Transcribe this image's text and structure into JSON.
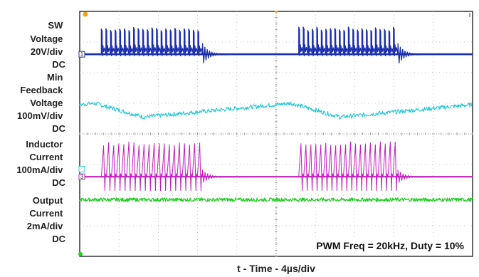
{
  "chart_data": {
    "type": "line",
    "title": "",
    "xlabel": "t - Time - 4µs/div",
    "ylabel": "",
    "annotation": "PWM Freq = 20kHz, Duty = 10%",
    "divisions": {
      "x": 10,
      "y": 8
    },
    "grid": true,
    "x_range_us": [
      0,
      40
    ],
    "pwm": {
      "freq_khz": 20,
      "period_us": 50,
      "duty_pct": 10
    },
    "series": [
      {
        "name": "SW Voltage",
        "scale": "20V/div",
        "coupling": "DC",
        "marker": "1",
        "color": "#1b2fae",
        "baseline_div": 6.6,
        "pulse_height_div": 0.85,
        "bursts_us": [
          [
            2.2,
            12.5
          ],
          [
            22.3,
            32.4
          ]
        ],
        "burst_pulses": 22
      },
      {
        "name": "Feedback Voltage",
        "scale": "100mV/div",
        "coupling": "DC",
        "marker": "Min",
        "color": "#22c8d8",
        "ripple_min_div": 4.55,
        "ripple_max_div": 5.0,
        "peak_us": [
          11.5,
          31.5
        ]
      },
      {
        "name": "Inductor Current",
        "scale": "100mA/div",
        "coupling": "DC",
        "marker": "3",
        "color": "#c020c0",
        "baseline_div": 2.6,
        "pulse_height_div": 1.1,
        "bursts_us": [
          [
            2.2,
            12.5
          ],
          [
            22.3,
            32.4
          ]
        ],
        "burst_pulses": 20
      },
      {
        "name": "Output Current",
        "scale": "2mA/div",
        "coupling": "DC",
        "marker": "4",
        "color": "#22cc22",
        "baseline_div": 1.85,
        "noise_div": 0.06
      }
    ],
    "channel_labels": [
      {
        "lines": [
          "SW",
          "Voltage",
          "20V/div",
          "DC"
        ]
      },
      {
        "lines": [
          "Min",
          "Feedback",
          "Voltage",
          "100mV/div",
          "DC"
        ]
      },
      {
        "lines": [
          "Inductor",
          "Current",
          "100mA/div",
          "DC"
        ]
      },
      {
        "lines": [
          "Output",
          "Current",
          "2mA/div",
          "DC"
        ]
      }
    ]
  }
}
